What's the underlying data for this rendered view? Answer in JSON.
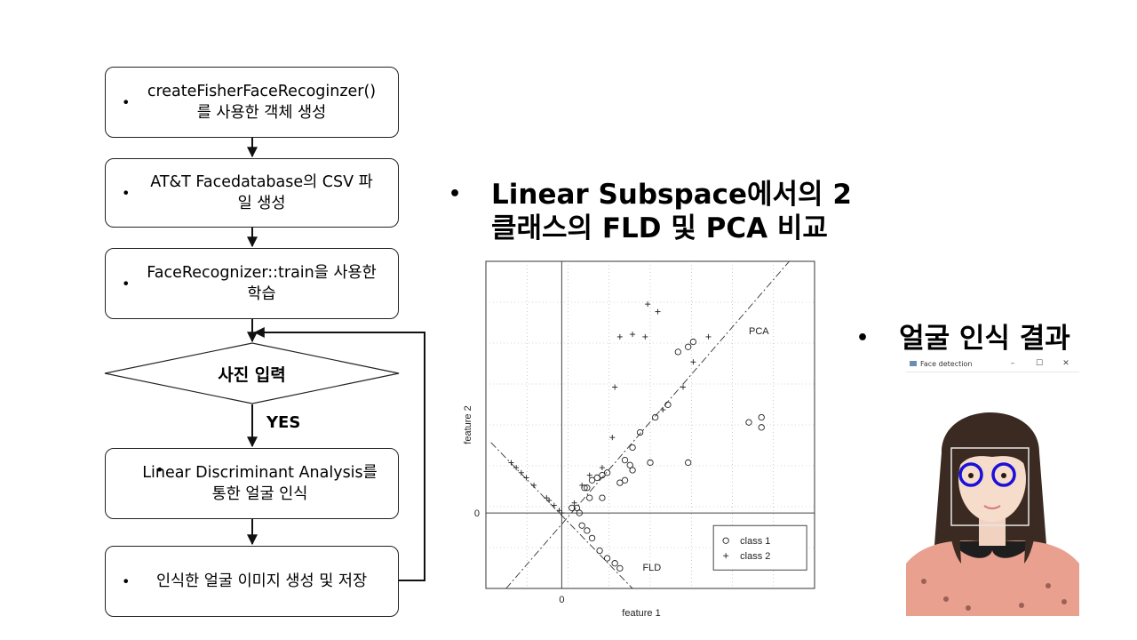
{
  "flowchart": {
    "steps": [
      {
        "bullet": "•",
        "text": "createFisherFaceRecoginzer()를 사용한 객체 생성"
      },
      {
        "bullet": "•",
        "text": "AT&T Facedatabase의 CSV 파일 생성"
      },
      {
        "bullet": "•",
        "text": "FaceRecognizer::train을 사용한 학습"
      },
      {
        "bullet": "•",
        "text": "Linear Discriminant Analysis를 통한 얼굴 인식"
      },
      {
        "bullet": "•",
        "text": "인식한 얼굴 이미지 생성 및 저장"
      }
    ],
    "decision": "사진 입력",
    "yes_label": "YES"
  },
  "middle": {
    "bullet": "•",
    "title_line1": "Linear Subspace에서의 2",
    "title_line2": "클래스의 FLD 및 PCA 비교"
  },
  "right": {
    "bullet": "•",
    "title": "얼굴 인식 결과",
    "window_title": "Face detection",
    "controls": [
      "–",
      "☐",
      "✕"
    ]
  },
  "chart_data": {
    "type": "scatter",
    "xlabel": "feature 1",
    "ylabel": "feature 2",
    "x_ticks": [
      "0"
    ],
    "y_ticks": [
      "0"
    ],
    "xlim": [
      -1.5,
      5.0
    ],
    "ylim": [
      -1.5,
      5.0
    ],
    "grid": true,
    "legend_position": "bottom-right",
    "annotations": [
      "PCA",
      "FLD"
    ],
    "series": [
      {
        "name": "class 1",
        "marker": "o",
        "points": [
          [
            0.2,
            0.1
          ],
          [
            0.3,
            0.1
          ],
          [
            0.35,
            0.0
          ],
          [
            0.4,
            -0.25
          ],
          [
            0.5,
            -0.35
          ],
          [
            0.6,
            -0.5
          ],
          [
            0.75,
            -0.75
          ],
          [
            0.9,
            -0.9
          ],
          [
            1.05,
            -1.0
          ],
          [
            1.15,
            -1.1
          ],
          [
            0.45,
            0.5
          ],
          [
            0.5,
            0.5
          ],
          [
            0.6,
            0.65
          ],
          [
            0.7,
            0.7
          ],
          [
            0.8,
            0.75
          ],
          [
            0.9,
            0.8
          ],
          [
            0.8,
            0.3
          ],
          [
            0.55,
            0.3
          ],
          [
            1.15,
            0.6
          ],
          [
            1.25,
            0.65
          ],
          [
            1.4,
            0.85
          ],
          [
            1.75,
            1.0
          ],
          [
            1.35,
            0.95
          ],
          [
            1.25,
            1.05
          ],
          [
            1.4,
            1.3
          ],
          [
            1.55,
            1.6
          ],
          [
            1.85,
            1.9
          ],
          [
            2.1,
            2.15
          ],
          [
            2.3,
            3.2
          ],
          [
            2.5,
            3.3
          ],
          [
            2.6,
            3.4
          ],
          [
            2.5,
            1.0
          ],
          [
            3.7,
            1.8
          ],
          [
            3.95,
            1.7
          ],
          [
            3.95,
            1.9
          ]
        ]
      },
      {
        "name": "class 2",
        "marker": "+",
        "points": [
          [
            -1.0,
            1.0
          ],
          [
            -0.9,
            0.9
          ],
          [
            -0.8,
            0.8
          ],
          [
            -0.7,
            0.7
          ],
          [
            -0.55,
            0.55
          ],
          [
            -0.3,
            0.3
          ],
          [
            -0.25,
            0.25
          ],
          [
            -0.15,
            0.15
          ],
          [
            -0.05,
            0.05
          ],
          [
            0.0,
            0.0
          ],
          [
            0.25,
            0.2
          ],
          [
            0.4,
            0.55
          ],
          [
            0.55,
            0.75
          ],
          [
            0.8,
            0.9
          ],
          [
            1.0,
            1.5
          ],
          [
            1.05,
            2.5
          ],
          [
            1.15,
            3.5
          ],
          [
            1.4,
            3.55
          ],
          [
            1.65,
            3.5
          ],
          [
            1.7,
            4.15
          ],
          [
            1.9,
            4.0
          ],
          [
            2.0,
            2.05
          ],
          [
            2.4,
            2.5
          ],
          [
            2.6,
            3.0
          ],
          [
            2.9,
            3.5
          ]
        ]
      }
    ]
  },
  "colors": {
    "line": "#222222",
    "eye_circle": "#1a10d8",
    "face_box": "#e8e8e8"
  }
}
